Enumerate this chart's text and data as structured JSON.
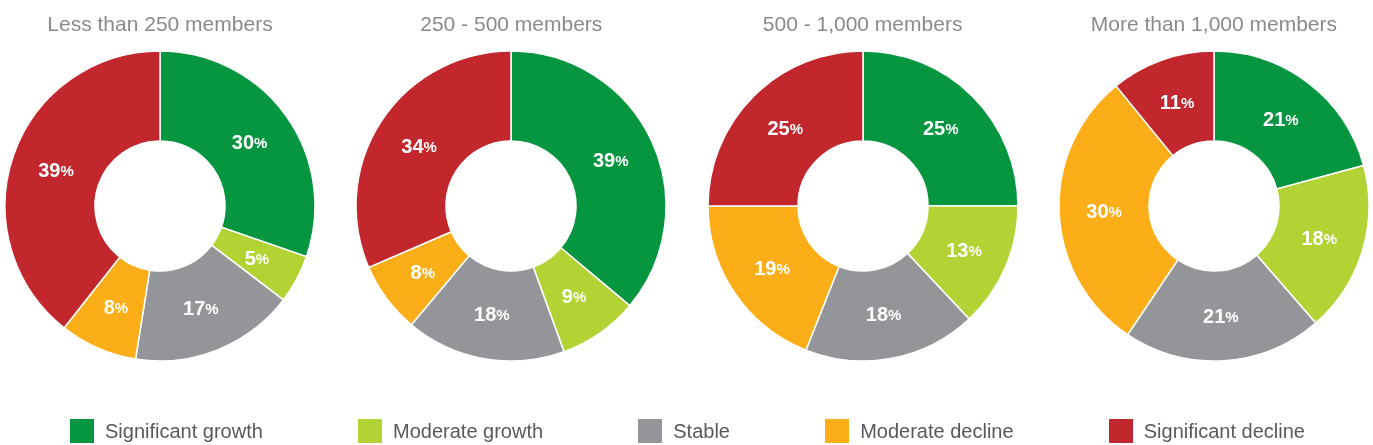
{
  "chart_data": [
    {
      "type": "donut",
      "title": "Less than 250 members",
      "categories": [
        "Significant growth",
        "Moderate growth",
        "Stable",
        "Moderate decline",
        "Significant decline"
      ],
      "values": [
        30,
        5,
        17,
        8,
        39
      ],
      "colors": [
        "#06963f",
        "#b3d335",
        "#939598",
        "#fbae17",
        "#c1272d"
      ],
      "value_labels": [
        "30%",
        "5%",
        "17%",
        "8%",
        "39%"
      ],
      "legend": "bottom"
    },
    {
      "type": "donut",
      "title": "250 - 500 members",
      "values": [
        39,
        9,
        18,
        8,
        34
      ],
      "colors": [
        "#06963f",
        "#b3d335",
        "#939598",
        "#fbae17",
        "#c1272d"
      ],
      "value_labels": [
        "39%",
        "9%",
        "18%",
        "8%",
        "34%"
      ]
    },
    {
      "type": "donut",
      "title": "500 - 1,000 members",
      "values": [
        25,
        13,
        18,
        19,
        25
      ],
      "colors": [
        "#06963f",
        "#b3d335",
        "#939598",
        "#fbae17",
        "#c1272d"
      ],
      "value_labels": [
        "25%",
        "13%",
        "18%",
        "19%",
        "25%"
      ]
    },
    {
      "type": "donut",
      "title": "More than 1,000 members",
      "values": [
        21,
        18,
        21,
        30,
        11
      ],
      "colors": [
        "#06963f",
        "#b3d335",
        "#939598",
        "#fbae17",
        "#c1272d"
      ],
      "value_labels": [
        "21%",
        "18%",
        "21%",
        "30%",
        "11%"
      ]
    }
  ]
}
